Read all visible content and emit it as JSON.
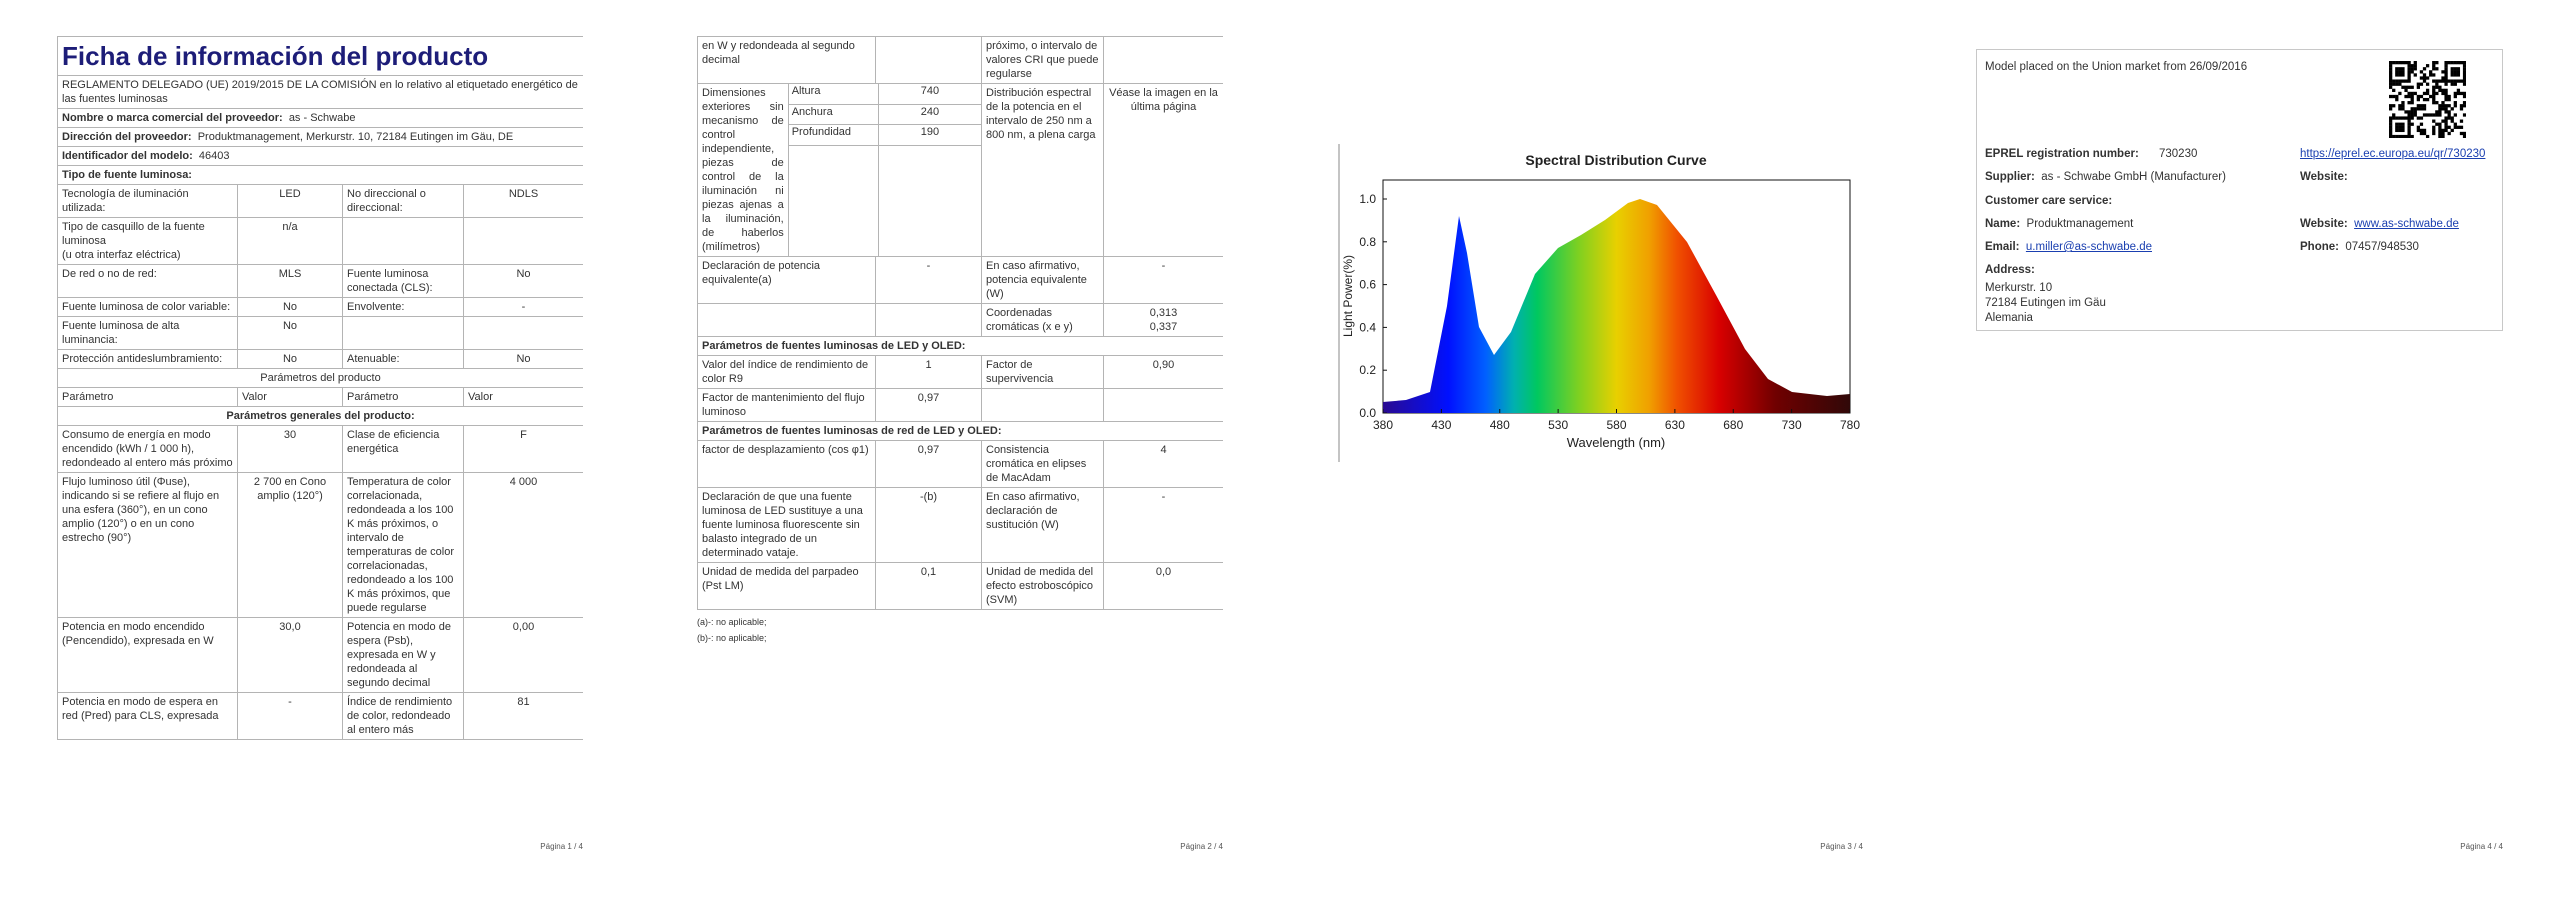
{
  "page1": {
    "title": "Ficha de información del producto",
    "regulation": "REGLAMENTO DELEGADO (UE) 2019/2015 DE LA COMISIÓN en lo relativo al etiquetado energético de las fuentes luminosas",
    "supplier_rows": [
      {
        "label": "Nombre o marca comercial del proveedor:",
        "value": "as - Schwabe"
      },
      {
        "label": "Dirección del proveedor:",
        "value": "Produktmanagement, Merkurstr. 10, 72184 Eutingen im Gäu, DE"
      },
      {
        "label": "Identificador del modelo:",
        "value": "46403"
      }
    ],
    "light_source_heading": "Tipo de fuente luminosa:",
    "light_source_rows": [
      [
        "Tecnología de iluminación utilizada:",
        "LED",
        "No direccional o direccional:",
        "NDLS"
      ],
      [
        [
          "Tipo de casquillo de la fuente luminosa",
          "(u otra interfaz eléctrica)"
        ],
        "n/a",
        null,
        null
      ],
      [
        "De red o no de red:",
        "MLS",
        "Fuente luminosa conectada (CLS):",
        "No"
      ],
      [
        "Fuente luminosa de color variable:",
        "No",
        "Envolvente:",
        "-"
      ],
      [
        "Fuente luminosa de alta luminancia:",
        "No",
        null,
        null
      ],
      [
        "Protección antideslumbramiento:",
        "No",
        "Atenuable:",
        "No"
      ]
    ],
    "parameters_heading": "Parámetros del producto",
    "column_headers": [
      "Parámetro",
      "Valor",
      "Parámetro",
      "Valor"
    ],
    "general_heading": "Parámetros generales del producto:",
    "general_rows": [
      [
        "Consumo de energía en modo encendido (kWh / 1 000 h), redondeado al entero más próximo",
        "30",
        "Clase de eficiencia energética",
        "F"
      ],
      [
        "Flujo luminoso útil (Φuse), indicando si se refiere al flujo en una esfera (360°), en un cono amplio (120°) o en un cono estrecho (90°)",
        "2 700 en Cono amplio (120°)",
        "Temperatura de color correlacionada, redondeada a los 100 K más próximos, o intervalo de temperaturas de color correlacionadas, redondeado a los 100 K más próximos, que puede regularse",
        "4 000"
      ],
      [
        "Potencia en modo encendido (Pencendido), expresada en W",
        "30,0",
        "Potencia en modo de espera (Psb), expresada en W y redondeada al segundo decimal",
        "0,00"
      ],
      [
        "Potencia en modo de espera en red (Pred) para CLS, expresada",
        "-",
        "Índice de rendimiento de color, redondeado al entero más",
        "81"
      ]
    ],
    "footer": "Página 1 / 4"
  },
  "page2": {
    "continued_rows": [
      [
        "en W y redondeada al segundo decimal",
        null,
        "próximo, o intervalo de valores CRI que puede regularse",
        null
      ]
    ],
    "dimensions": {
      "label": "Dimensiones exteriores sin mecanismo de control independiente, piezas de control de la iluminación ni piezas ajenas a la iluminación, de haberlos (milímetros)",
      "parts": [
        {
          "name": "Altura",
          "value": "740"
        },
        {
          "name": "Anchura",
          "value": "240"
        },
        {
          "name": "Profundidad",
          "value": "190"
        }
      ],
      "distribution_label": "Distribución espectral de la potencia en el intervalo de 250 nm a 800 nm, a plena carga",
      "distribution_value": "Véase la imagen en la última página"
    },
    "rows": [
      [
        "Declaración de potencia equivalente(a)",
        "-",
        "En caso afirmativo, potencia equivalente (W)",
        "-"
      ],
      [
        null,
        null,
        "Coordenadas cromáticas (x e y)",
        [
          "0,313",
          "0,337"
        ]
      ]
    ],
    "led_heading": "Parámetros de fuentes luminosas de LED y OLED:",
    "led_rows": [
      [
        "Valor del índice de rendimiento de color R9",
        "1",
        "Factor de supervivencia",
        "0,90"
      ],
      [
        "Factor de mantenimiento del flujo luminoso",
        "0,97",
        null,
        null
      ]
    ],
    "mains_heading": "Parámetros de fuentes luminosas de red de LED y OLED:",
    "mains_rows": [
      [
        "factor de desplazamiento (cos φ1)",
        "0,97",
        "Consistencia cromática en elipses de MacAdam",
        "4"
      ],
      [
        "Declaración de que una fuente luminosa de LED sustituye a una fuente luminosa fluorescente sin balasto integrado de un determinado vataje.",
        "-(b)",
        "En caso afirmativo, declaración de sustitución (W)",
        "-"
      ],
      [
        "Unidad de medida del parpadeo (Pst LM)",
        "0,1",
        "Unidad de medida del efecto estroboscópico (SVM)",
        "0,0"
      ]
    ],
    "notes": [
      "(a)-: no aplicable;",
      "(b)-: no aplicable;"
    ],
    "footer": "Página 2 / 4"
  },
  "page3": {
    "spectrum": {
      "title": "Spectral Distribution Curve",
      "x_label": "Wavelength (nm)",
      "y_label": "Light Power(%)",
      "xticks": [
        "380",
        "430",
        "480",
        "530",
        "580",
        "630",
        "680",
        "730",
        "780"
      ],
      "yticks": [
        "0.0",
        "0.2",
        "0.4",
        "0.6",
        "0.8",
        "1.0"
      ]
    },
    "footer": "Página 3 / 4"
  },
  "page4": {
    "market_note": "Model placed on the Union market from 26/09/2016",
    "eprel_label": "EPREL registration number:",
    "eprel_value": "730230",
    "eprel_link": "https://eprel.ec.europa.eu/qr/730230",
    "supplier_label": "Supplier:",
    "supplier_value": "as - Schwabe GmbH (Manufacturer)",
    "website_label": "Website:",
    "customer_care": "Customer care service:",
    "name_label": "Name:",
    "name_value": "Produktmanagement",
    "contact_website_label": "Website:",
    "contact_website_value": "www.as-schwabe.de",
    "email_label": "Email:",
    "email_value": "u.miller@as-schwabe.de",
    "phone_label": "Phone:",
    "phone_value": "07457/948530",
    "address_label": "Address:",
    "address_lines": [
      "Merkurstr. 10",
      "72184 Eutingen im Gäu",
      "Alemania"
    ],
    "footer": "Página 4 / 4"
  }
}
